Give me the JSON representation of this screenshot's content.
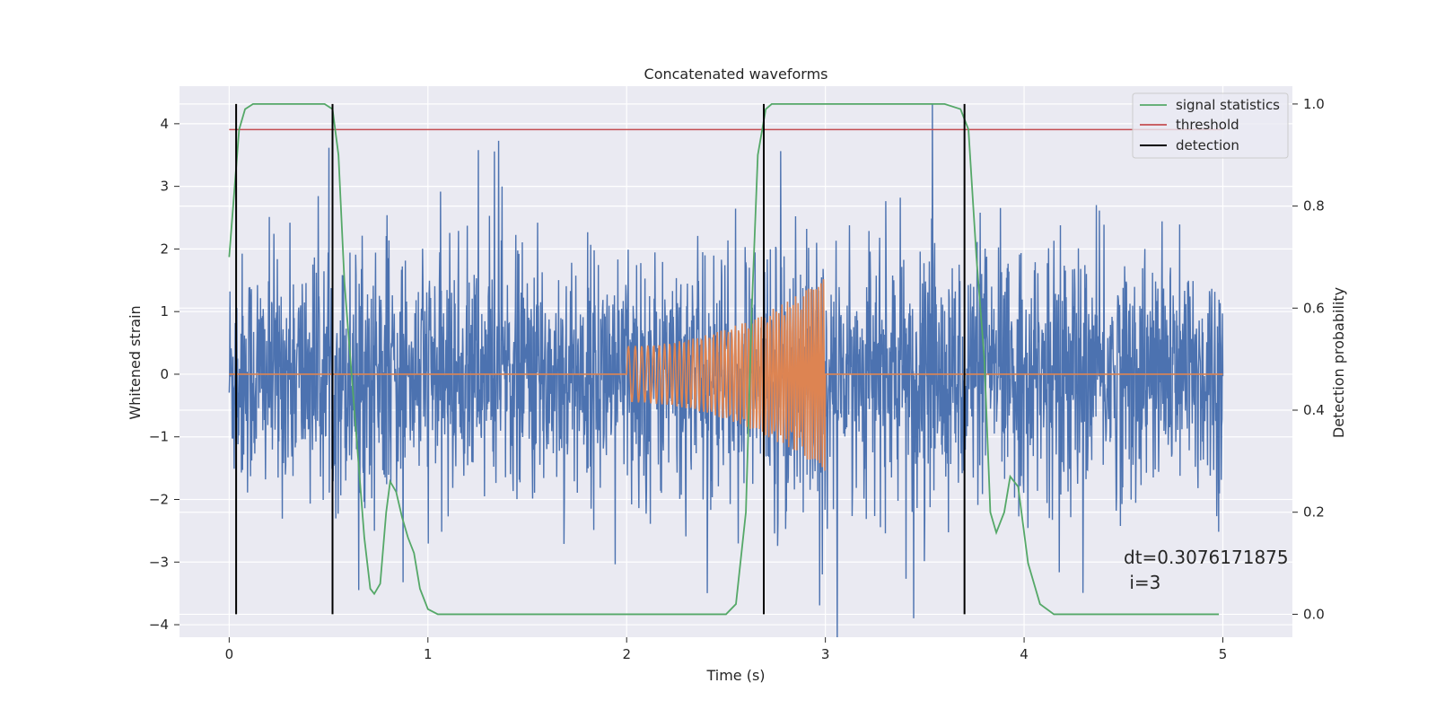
{
  "chart_data": {
    "type": "line",
    "title": "Concatenated waveforms",
    "xlabel": "Time (s)",
    "ylabel": "Whitened strain",
    "y2label": "Detection probability",
    "xlim": [
      -0.25,
      5.35
    ],
    "ylim": [
      -4.2,
      4.6
    ],
    "y2lim": [
      -0.045,
      1.035
    ],
    "x_ticks": [
      "0",
      "1",
      "2",
      "3",
      "4",
      "5"
    ],
    "y_ticks": [
      "−4",
      "−3",
      "−2",
      "−1",
      "0",
      "1",
      "2",
      "3",
      "4"
    ],
    "y2_ticks": [
      "0.0",
      "0.2",
      "0.4",
      "0.6",
      "0.8",
      "1.0"
    ],
    "grid": true,
    "legend_position": "top-right",
    "series": [
      {
        "name": "",
        "axis": "left",
        "color": "#4c72b0",
        "description": "whitened noisy strain",
        "x_range": [
          0,
          5
        ],
        "amplitude_envelope": 2.6,
        "max_spike": 4.35
      },
      {
        "name": "",
        "axis": "left",
        "color": "#dd8452",
        "description": "injected chirp",
        "segments": [
          {
            "x": [
              0,
              2
            ],
            "y": 0
          },
          {
            "x": [
              2,
              3
            ],
            "start_amplitude": 0.45,
            "end_amplitude": 1.55,
            "cycles": 55
          },
          {
            "x": [
              3,
              5
            ],
            "y": 0
          }
        ]
      },
      {
        "name": "signal statistics",
        "axis": "right",
        "color": "#55a868",
        "x": [
          0,
          0.02,
          0.05,
          0.08,
          0.12,
          0.2,
          0.3,
          0.4,
          0.48,
          0.52,
          0.55,
          0.58,
          0.62,
          0.65,
          0.68,
          0.71,
          0.73,
          0.76,
          0.79,
          0.81,
          0.84,
          0.87,
          0.9,
          0.93,
          0.96,
          1.0,
          1.05,
          1.2,
          1.5,
          1.8,
          2.0,
          2.2,
          2.4,
          2.5,
          2.55,
          2.6,
          2.63,
          2.66,
          2.7,
          2.73,
          2.76,
          2.8,
          3.0,
          3.3,
          3.6,
          3.68,
          3.72,
          3.76,
          3.8,
          3.83,
          3.86,
          3.9,
          3.93,
          3.97,
          4.02,
          4.08,
          4.15,
          4.3,
          4.6,
          4.8,
          4.98
        ],
        "y": [
          0.7,
          0.8,
          0.95,
          0.99,
          1.0,
          1.0,
          1.0,
          1.0,
          1.0,
          0.99,
          0.9,
          0.65,
          0.45,
          0.3,
          0.15,
          0.05,
          0.04,
          0.06,
          0.2,
          0.26,
          0.24,
          0.19,
          0.15,
          0.12,
          0.05,
          0.01,
          0.0,
          0.0,
          0.0,
          0.0,
          0.0,
          0.0,
          0.0,
          0.0,
          0.02,
          0.2,
          0.6,
          0.9,
          0.99,
          1.0,
          1.0,
          1.0,
          1.0,
          1.0,
          1.0,
          0.99,
          0.95,
          0.7,
          0.5,
          0.2,
          0.16,
          0.2,
          0.27,
          0.25,
          0.1,
          0.02,
          0.0,
          0.0,
          0.0,
          0.0,
          0.0
        ]
      },
      {
        "name": "threshold",
        "axis": "right",
        "color": "#c44e52",
        "x": [
          0,
          5
        ],
        "y": [
          0.95,
          0.95
        ]
      },
      {
        "name": "detection",
        "axis": "right",
        "color": "#000000",
        "x": [
          0.035,
          0.52,
          2.69,
          3.7
        ],
        "y_range": [
          0,
          1.0
        ]
      }
    ],
    "annotation": {
      "line1": "dt=0.3076171875",
      "line2": " i=3",
      "x": 4.5,
      "y": -3.05
    }
  }
}
